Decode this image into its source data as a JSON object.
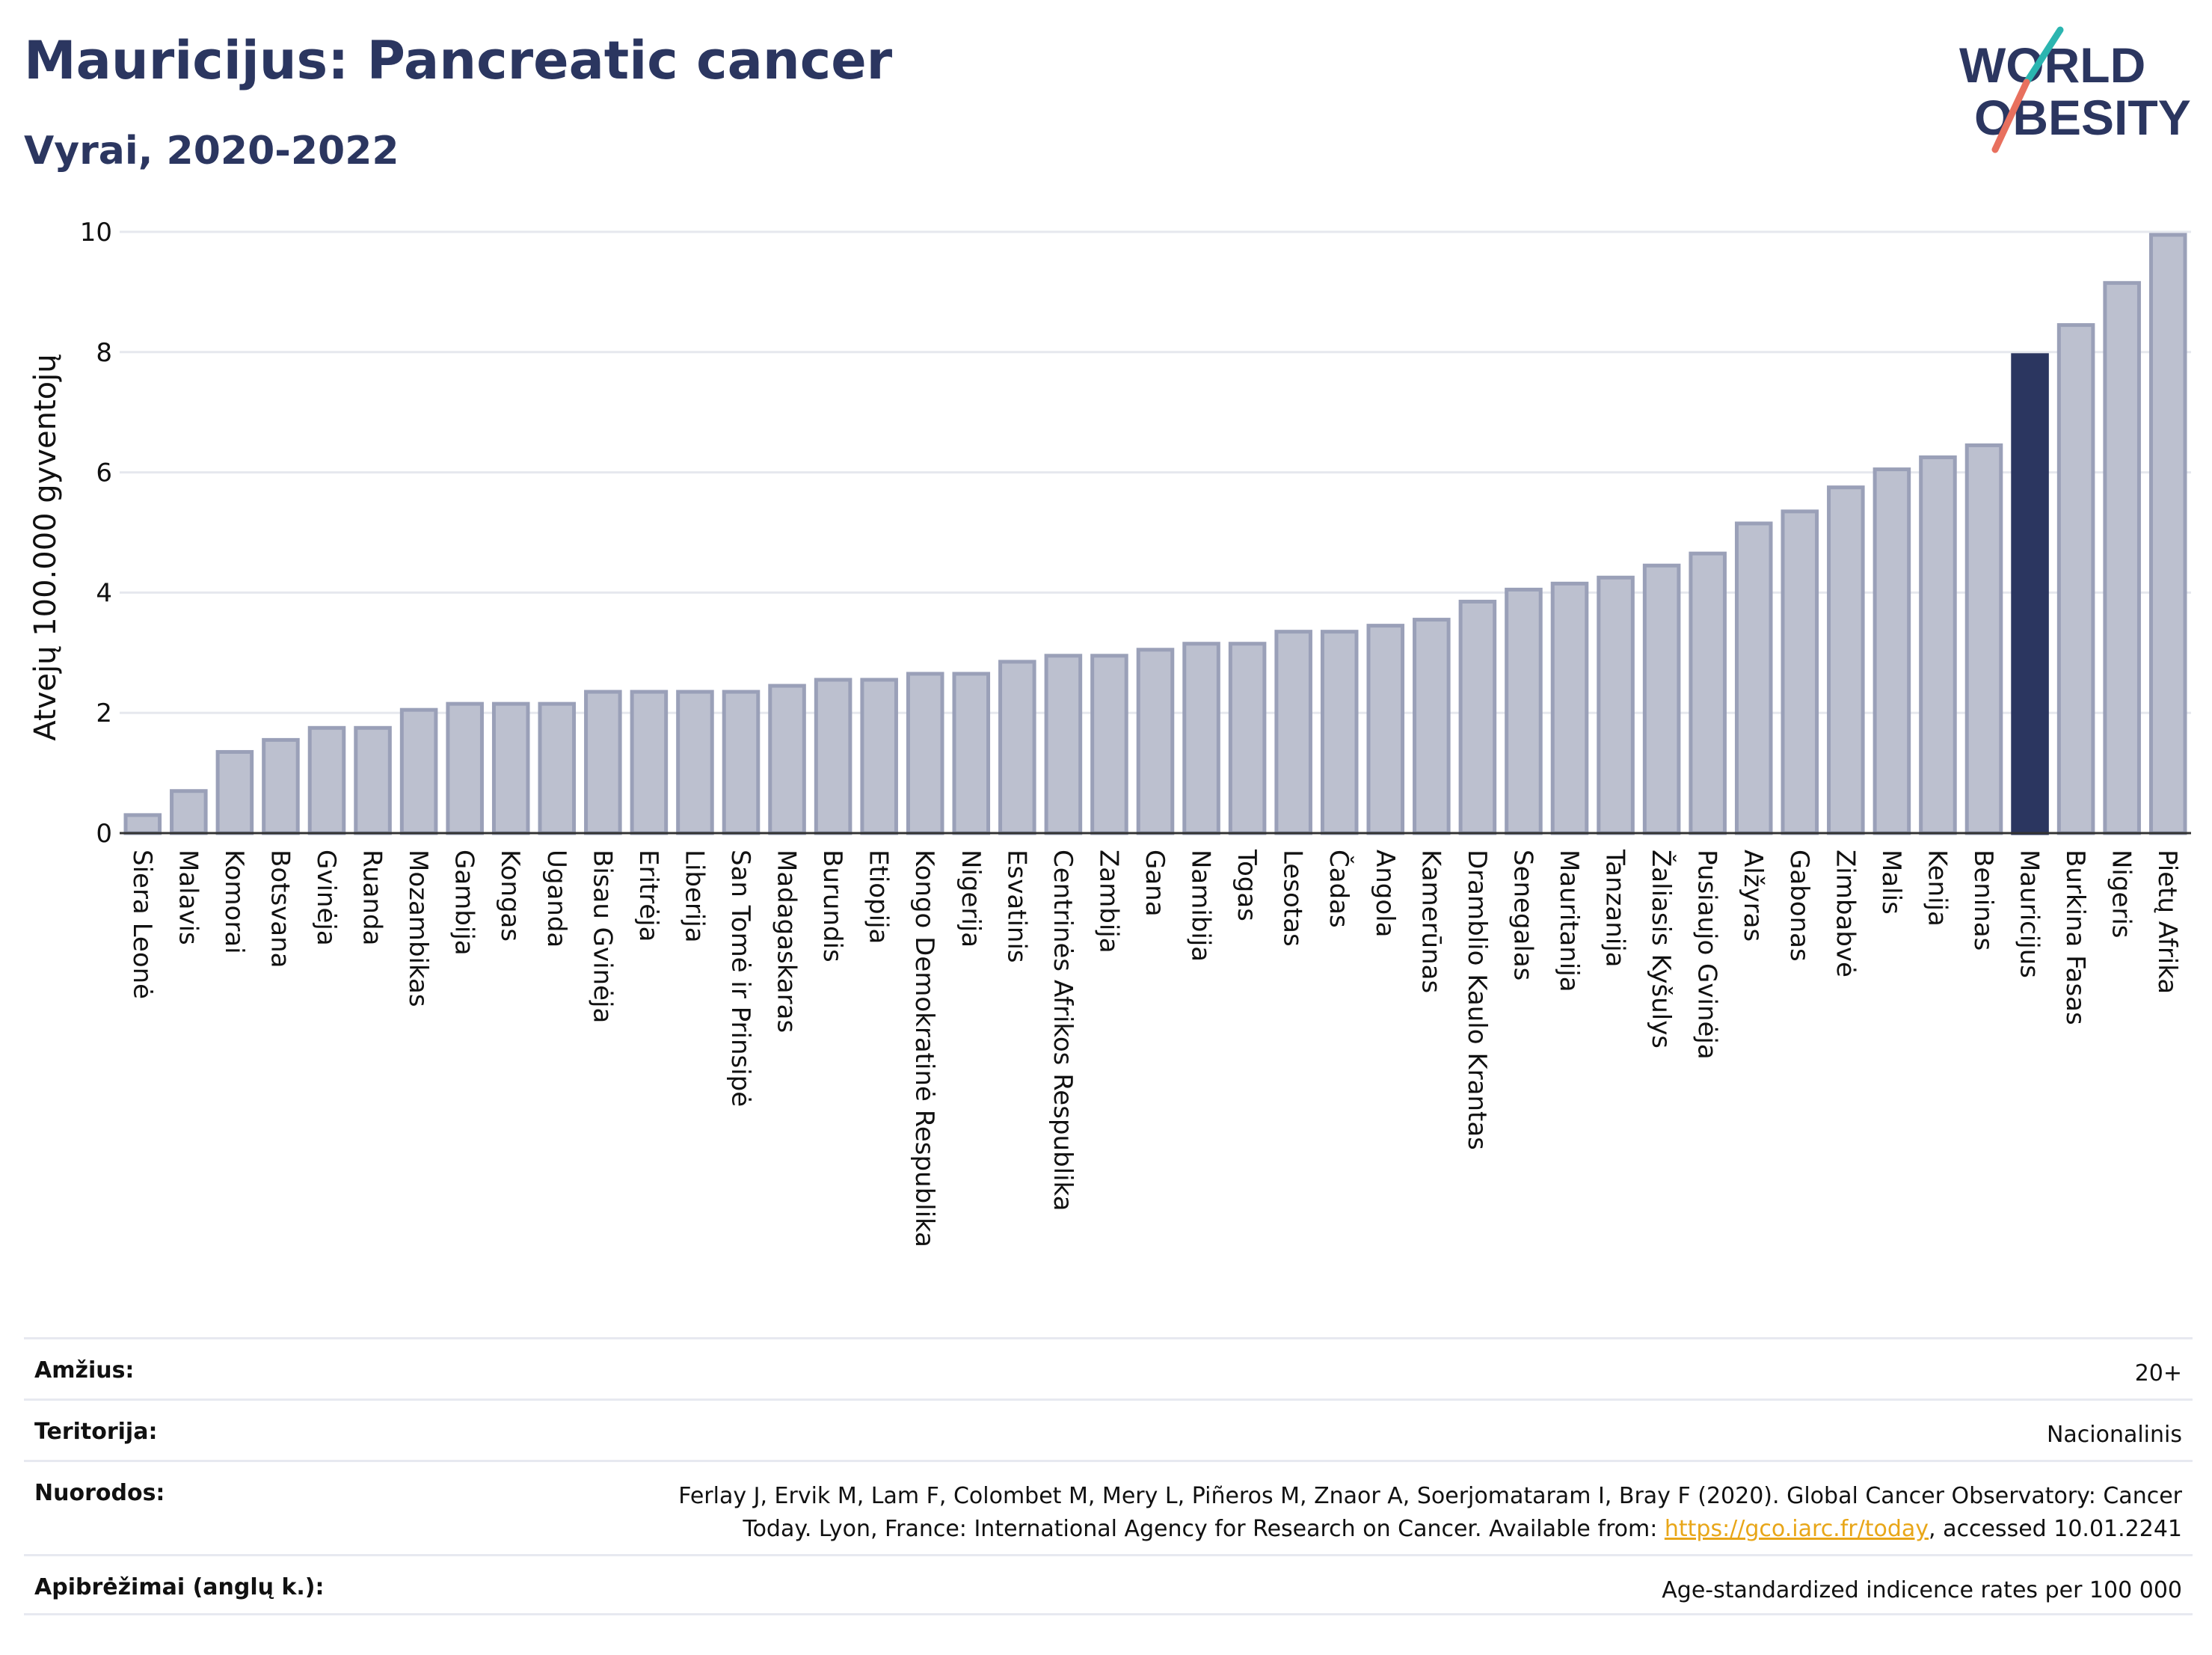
{
  "header": {
    "title": "Mauricijus: Pancreatic cancer",
    "subtitle": "Vyrai, 2020-2022"
  },
  "logo": {
    "line1": "WORLD",
    "line2": "OBESITY",
    "colors": {
      "text": "#2b3660",
      "slash_top": "#2bb5b0",
      "slash_bottom": "#e8705e"
    }
  },
  "colors": {
    "bar": "#bcc0cf",
    "bar_border": "#9aa0b8",
    "highlight": "#2b3660",
    "grid": "#e6e8ee"
  },
  "chart_data": {
    "type": "bar",
    "ylabel": "Atvejų 100.000 gyventojų",
    "ylim": [
      0,
      10
    ],
    "yticks": [
      0,
      2,
      4,
      6,
      8,
      10
    ],
    "grid": true,
    "highlight": "Mauricijus",
    "categories": [
      "Siera Leonė",
      "Malavis",
      "Komorai",
      "Botsvana",
      "Gvinėja",
      "Ruanda",
      "Mozambikas",
      "Gambija",
      "Kongas",
      "Uganda",
      "Bisau Gvinėja",
      "Eritrėja",
      "Liberija",
      "San Tomė ir Prinsipė",
      "Madagaskaras",
      "Burundis",
      "Etiopija",
      "Kongo Demokratinė Respublika",
      "Nigerija",
      "Esvatinis",
      "Centrinės Afrikos Respublika",
      "Zambija",
      "Gana",
      "Namibija",
      "Togas",
      "Lesotas",
      "Čadas",
      "Angola",
      "Kamerūnas",
      "Dramblio Kaulo Krantas",
      "Senegalas",
      "Mauritanija",
      "Tanzanija",
      "Žaliasis Kyšulys",
      "Pusiaujo Gvinėja",
      "Alžyras",
      "Gabonas",
      "Zimbabvė",
      "Malis",
      "Kenija",
      "Beninas",
      "Mauricijus",
      "Burkina Fasas",
      "Nigeris",
      "Pietų Afrika"
    ],
    "values": [
      0.3,
      0.7,
      1.35,
      1.55,
      1.75,
      1.75,
      2.05,
      2.15,
      2.15,
      2.15,
      2.35,
      2.35,
      2.35,
      2.35,
      2.45,
      2.55,
      2.55,
      2.65,
      2.65,
      2.85,
      2.95,
      2.95,
      3.05,
      3.15,
      3.15,
      3.35,
      3.35,
      3.45,
      3.55,
      3.85,
      4.05,
      4.15,
      4.25,
      4.45,
      4.65,
      5.15,
      5.35,
      5.75,
      6.05,
      6.25,
      6.45,
      7.95,
      8.45,
      9.15,
      9.95
    ]
  },
  "meta": {
    "age_label": "Amžius:",
    "age_value": "20+",
    "territory_label": "Teritorija:",
    "territory_value": "Nacionalinis",
    "refs_label": "Nuorodos:",
    "refs_line1": "Ferlay J, Ervik M, Lam F, Colombet M, Mery L, Piñeros M, Znaor A, Soerjomataram I, Bray F (2020). Global Cancer Observatory: Cancer",
    "refs_line2_pre": "Today. Lyon, France: International Agency for Research on Cancer. Available from: ",
    "refs_link": "https://gco.iarc.fr/today",
    "refs_line2_post": ", accessed 10.01.2241",
    "defs_label": "Apibrėžimai (anglų k.):",
    "defs_value": "Age-standardized indicence rates per 100 000"
  }
}
